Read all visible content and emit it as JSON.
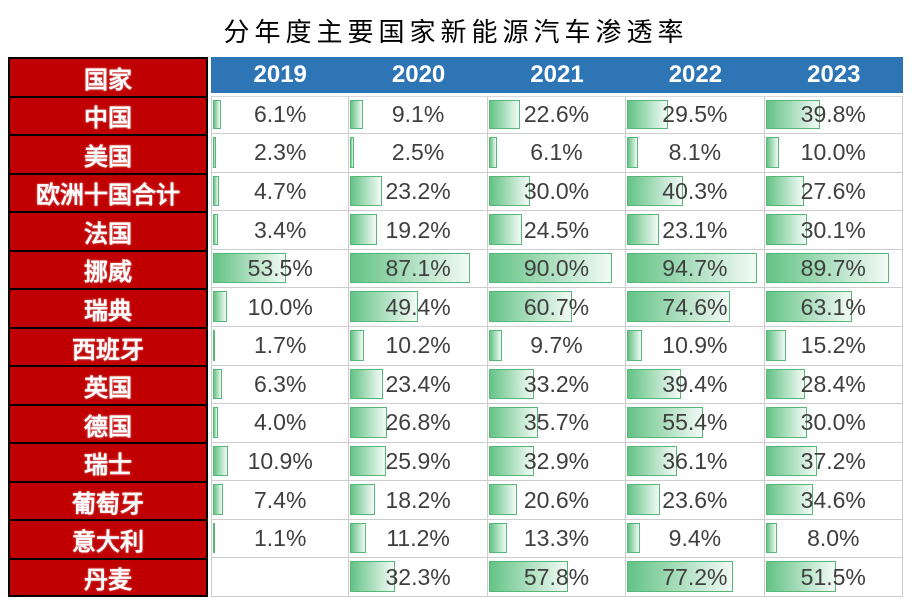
{
  "title": "分年度主要国家新能源汽车渗透率",
  "table": {
    "country_header": "国家"
  },
  "chart_data": {
    "type": "table",
    "title": "分年度主要国家新能源汽车渗透率",
    "categories": [
      "2019",
      "2020",
      "2021",
      "2022",
      "2023"
    ],
    "unit": "%",
    "bar_scale": [
      0,
      100
    ],
    "legend_position": "none",
    "series": [
      {
        "name": "中国",
        "values": [
          6.1,
          9.1,
          22.6,
          29.5,
          39.8
        ]
      },
      {
        "name": "美国",
        "values": [
          2.3,
          2.5,
          6.1,
          8.1,
          10.0
        ]
      },
      {
        "name": "欧洲十国合计",
        "values": [
          4.7,
          23.2,
          30.0,
          40.3,
          27.6
        ]
      },
      {
        "name": "法国",
        "values": [
          3.4,
          19.2,
          24.5,
          23.1,
          30.1
        ]
      },
      {
        "name": "挪威",
        "values": [
          53.5,
          87.1,
          90.0,
          94.7,
          89.7
        ]
      },
      {
        "name": "瑞典",
        "values": [
          10.0,
          49.4,
          60.7,
          74.6,
          63.1
        ]
      },
      {
        "name": "西班牙",
        "values": [
          1.7,
          10.2,
          9.7,
          10.9,
          15.2
        ]
      },
      {
        "name": "英国",
        "values": [
          6.3,
          23.4,
          33.2,
          39.4,
          28.4
        ]
      },
      {
        "name": "德国",
        "values": [
          4.0,
          26.8,
          35.7,
          55.4,
          30.0
        ]
      },
      {
        "name": "瑞士",
        "values": [
          10.9,
          25.9,
          32.9,
          36.1,
          37.2
        ]
      },
      {
        "name": "葡萄牙",
        "values": [
          7.4,
          18.2,
          20.6,
          23.6,
          34.6
        ]
      },
      {
        "name": "意大利",
        "values": [
          1.1,
          11.2,
          13.3,
          9.4,
          8.0
        ]
      },
      {
        "name": "丹麦",
        "values": [
          null,
          32.3,
          57.8,
          77.2,
          51.5
        ]
      }
    ]
  },
  "colors": {
    "country_col_bg": "#C00000",
    "country_col_border": "#000000",
    "year_header_bg": "#2E75B6",
    "header_text": "#FFFFFF",
    "cell_border": "#CDCDCD",
    "bar_border": "#58B778",
    "bar_fill_start": "#63C385",
    "bar_fill_end": "#F3FAF6",
    "value_text": "#3F3F3F"
  }
}
